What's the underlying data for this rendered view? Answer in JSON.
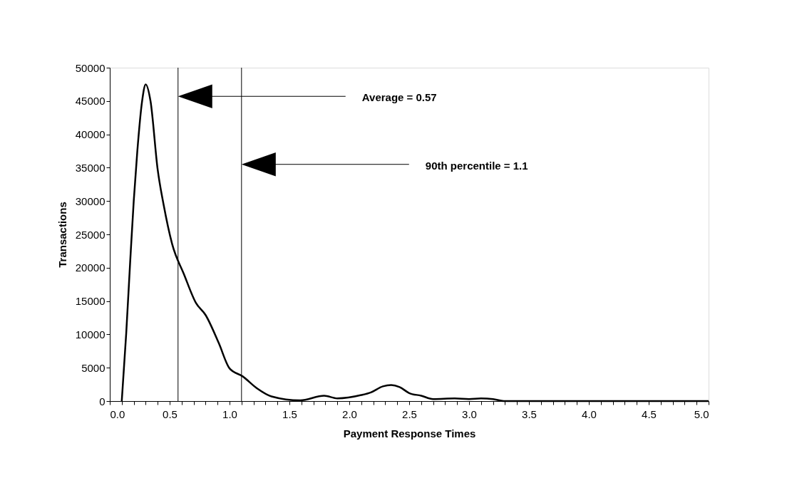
{
  "chart_data": {
    "type": "line",
    "xlabel": "Payment Response Times",
    "ylabel": "Transactions",
    "x": [
      0.1,
      0.137,
      0.17,
      0.2,
      0.23,
      0.27,
      0.3,
      0.34,
      0.4,
      0.45,
      0.52,
      0.62,
      0.72,
      0.8,
      0.91,
      1.0,
      1.11,
      1.23,
      1.35,
      1.59,
      1.79,
      1.9,
      2.1,
      2.18,
      2.28,
      2.35,
      2.42,
      2.5,
      2.6,
      2.7,
      2.88,
      3.0,
      3.1,
      3.2,
      3.29,
      4.0,
      5.0
    ],
    "series": [
      {
        "color": "#000000",
        "values": [
          0,
          10100,
          20800,
          30000,
          37500,
          45000,
          47500,
          45000,
          34700,
          29400,
          23600,
          19000,
          14700,
          12900,
          8700,
          4900,
          3700,
          1900,
          700,
          100,
          800,
          400,
          900,
          1300,
          2200,
          2400,
          2100,
          1200,
          800,
          300,
          400,
          300,
          400,
          300,
          0,
          0,
          0
        ]
      }
    ],
    "xlim": [
      0,
      5
    ],
    "ylim": [
      0,
      50000
    ],
    "xticks": [
      {
        "value": 0,
        "label": "0.0"
      },
      {
        "value": 0.1,
        "label": null
      },
      {
        "value": 0.2,
        "label": null
      },
      {
        "value": 0.3,
        "label": null
      },
      {
        "value": 0.4,
        "label": null
      },
      {
        "value": 0.5,
        "label": "0.5"
      },
      {
        "value": 0.6,
        "label": null
      },
      {
        "value": 0.7,
        "label": null
      },
      {
        "value": 0.8,
        "label": null
      },
      {
        "value": 0.9,
        "label": null
      },
      {
        "value": 1,
        "label": "1.0"
      },
      {
        "value": 1.1,
        "label": null
      },
      {
        "value": 1.2,
        "label": null
      },
      {
        "value": 1.3,
        "label": null
      },
      {
        "value": 1.4,
        "label": null
      },
      {
        "value": 1.5,
        "label": "1.5"
      },
      {
        "value": 1.6,
        "label": null
      },
      {
        "value": 1.7,
        "label": null
      },
      {
        "value": 1.8,
        "label": null
      },
      {
        "value": 1.9,
        "label": null
      },
      {
        "value": 2,
        "label": "2.0"
      },
      {
        "value": 2.1,
        "label": null
      },
      {
        "value": 2.2,
        "label": null
      },
      {
        "value": 2.3,
        "label": null
      },
      {
        "value": 2.4,
        "label": null
      },
      {
        "value": 2.5,
        "label": "2.5"
      },
      {
        "value": 2.6,
        "label": null
      },
      {
        "value": 2.7,
        "label": null
      },
      {
        "value": 2.8,
        "label": null
      },
      {
        "value": 2.9,
        "label": null
      },
      {
        "value": 3,
        "label": "3.0"
      },
      {
        "value": 3.1,
        "label": null
      },
      {
        "value": 3.2,
        "label": null
      },
      {
        "value": 3.3,
        "label": null
      },
      {
        "value": 3.4,
        "label": null
      },
      {
        "value": 3.5,
        "label": "3.5"
      },
      {
        "value": 3.6,
        "label": null
      },
      {
        "value": 3.7,
        "label": null
      },
      {
        "value": 3.8,
        "label": null
      },
      {
        "value": 3.9,
        "label": null
      },
      {
        "value": 4,
        "label": "4.0"
      },
      {
        "value": 4.1,
        "label": null
      },
      {
        "value": 4.2,
        "label": null
      },
      {
        "value": 4.3,
        "label": null
      },
      {
        "value": 4.4,
        "label": null
      },
      {
        "value": 4.5,
        "label": "4.5"
      },
      {
        "value": 4.6,
        "label": null
      },
      {
        "value": 4.7,
        "label": null
      },
      {
        "value": 4.8,
        "label": null
      },
      {
        "value": 4.9,
        "label": null
      },
      {
        "value": 5,
        "label": "5.0"
      }
    ],
    "yticks": [
      0,
      5000,
      10000,
      15000,
      20000,
      25000,
      30000,
      35000,
      40000,
      45000,
      50000
    ],
    "ref_lines": [
      {
        "axis": "x",
        "value": 0.57,
        "color": "#000000"
      },
      {
        "axis": "x",
        "value": 1.1,
        "color": "#000000"
      }
    ],
    "annotations": [
      "Average = 0.57",
      "90th percentile = 1.1"
    ],
    "grid": false,
    "marker": "none",
    "line_style": "solid"
  }
}
